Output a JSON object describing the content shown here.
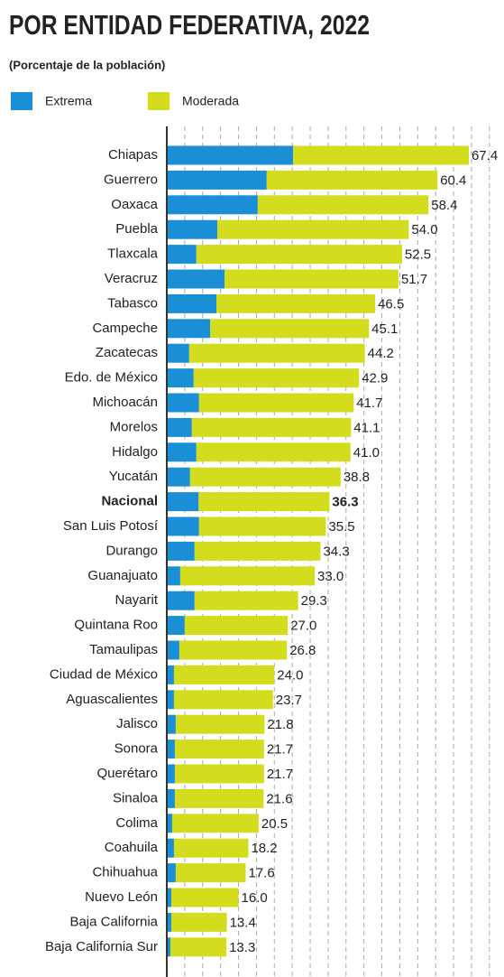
{
  "chart_data": {
    "type": "stacked-bar-horizontal",
    "title": "POR ENTIDAD FEDERATIVA, 2022",
    "subtitle": "(Porcentaje de la población)",
    "categories": [
      "Chiapas",
      "Guerrero",
      "Oaxaca",
      "Puebla",
      "Tlaxcala",
      "Veracruz",
      "Tabasco",
      "Campeche",
      "Zacatecas",
      "Edo. de México",
      "Michoacán",
      "Morelos",
      "Hidalgo",
      "Yucatán",
      "Nacional",
      "San Luis Potosí",
      "Durango",
      "Guanajuato",
      "Nayarit",
      "Quintana Roo",
      "Tamaulipas",
      "Ciudad de México",
      "Aguascalientes",
      "Jalisco",
      "Sonora",
      "Querétaro",
      "Sinaloa",
      "Colima",
      "Coahuila",
      "Chihuahua",
      "Nuevo León",
      "Baja California",
      "Baja California Sur"
    ],
    "series": [
      {
        "name": "Extrema",
        "color": "#1a8fd6",
        "values": [
          28.2,
          22.3,
          20.3,
          11.3,
          6.6,
          12.9,
          11.1,
          9.7,
          5.0,
          6.0,
          7.2,
          5.6,
          6.6,
          5.2,
          7.1,
          7.2,
          6.2,
          3.0,
          6.2,
          4.0,
          2.8,
          1.6,
          1.6,
          2.0,
          1.8,
          1.8,
          1.8,
          1.2,
          1.6,
          2.0,
          1.0,
          1.0,
          0.8
        ]
      },
      {
        "name": "Moderada",
        "color": "#d4dc1e",
        "values": [
          39.2,
          38.1,
          38.1,
          42.7,
          45.9,
          38.8,
          35.4,
          35.4,
          39.2,
          36.9,
          34.5,
          35.5,
          34.4,
          33.6,
          29.2,
          28.3,
          28.1,
          30.0,
          23.1,
          23.0,
          24.0,
          22.4,
          22.1,
          19.8,
          19.9,
          19.9,
          19.8,
          19.3,
          16.6,
          15.6,
          15.0,
          12.4,
          12.5
        ]
      }
    ],
    "totals": [
      67.4,
      60.4,
      58.4,
      54.0,
      52.5,
      51.7,
      46.5,
      45.1,
      44.2,
      42.9,
      41.7,
      41.1,
      41.0,
      38.8,
      36.3,
      35.5,
      34.3,
      33.0,
      29.3,
      27.0,
      26.8,
      24.0,
      23.7,
      21.8,
      21.7,
      21.7,
      21.6,
      20.5,
      18.2,
      17.6,
      16.0,
      13.4,
      13.3
    ],
    "total_labels": [
      "67.4",
      "60.4",
      "58.4",
      "54.0",
      "52.5",
      "51.7",
      "46.5",
      "45.1",
      "44.2",
      "42.9",
      "41.7",
      "41.1",
      "41.0",
      "38.8",
      "36.3",
      "35.5",
      "34.3",
      "33.0",
      "29.3",
      "27.0",
      "26.8",
      "24.0",
      "23.7",
      "21.8",
      "21.7",
      "21.7",
      "21.6",
      "20.5",
      "18.2",
      "17.6",
      "16.0",
      "13.4",
      "13.3"
    ],
    "highlight": 14,
    "xlim": [
      0,
      72
    ],
    "xticks": [
      0,
      4,
      8,
      12,
      16,
      20,
      24,
      28,
      32,
      36,
      40,
      44,
      48,
      52,
      56,
      60,
      64,
      68,
      72
    ],
    "grid": true
  }
}
